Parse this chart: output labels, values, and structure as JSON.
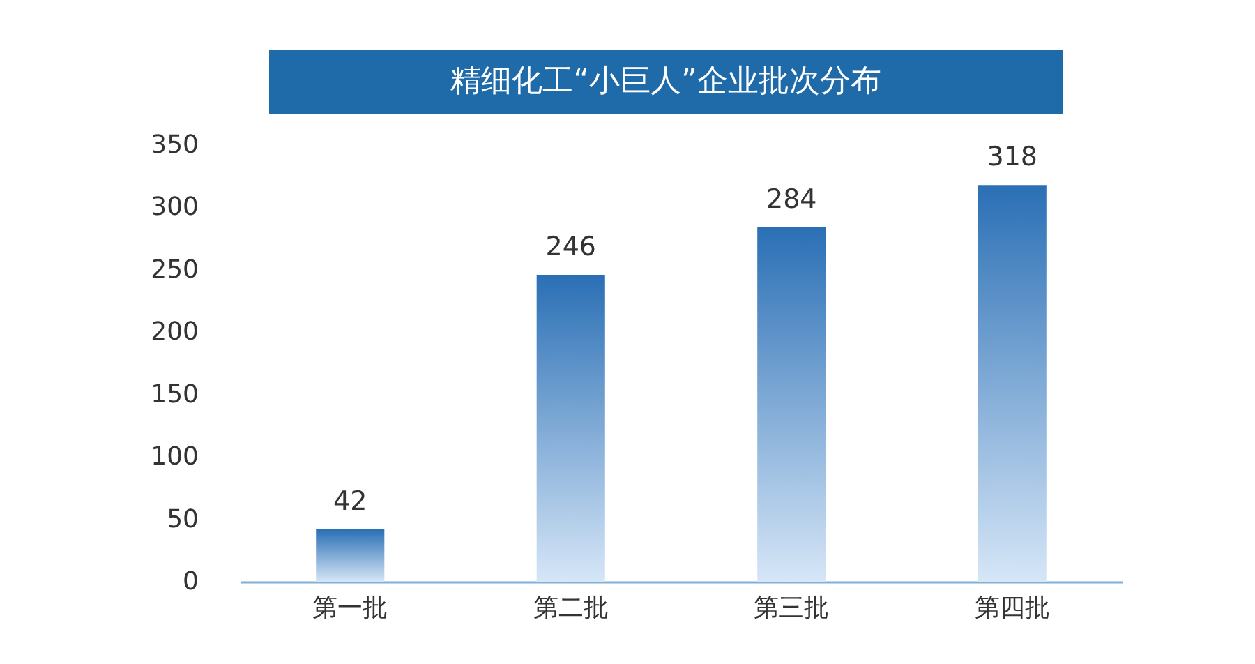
{
  "chart_data": {
    "type": "bar",
    "title": "精细化工“小巨人”企业批次分布",
    "categories": [
      "第一批",
      "第二批",
      "第三批",
      "第四批"
    ],
    "values": [
      42,
      246,
      284,
      318
    ],
    "color": "#2a6fb5",
    "ylim": [
      0,
      350
    ],
    "yticks": [
      0,
      50,
      100,
      150,
      200,
      250,
      300,
      350
    ],
    "grid": false,
    "data_labels": true
  }
}
